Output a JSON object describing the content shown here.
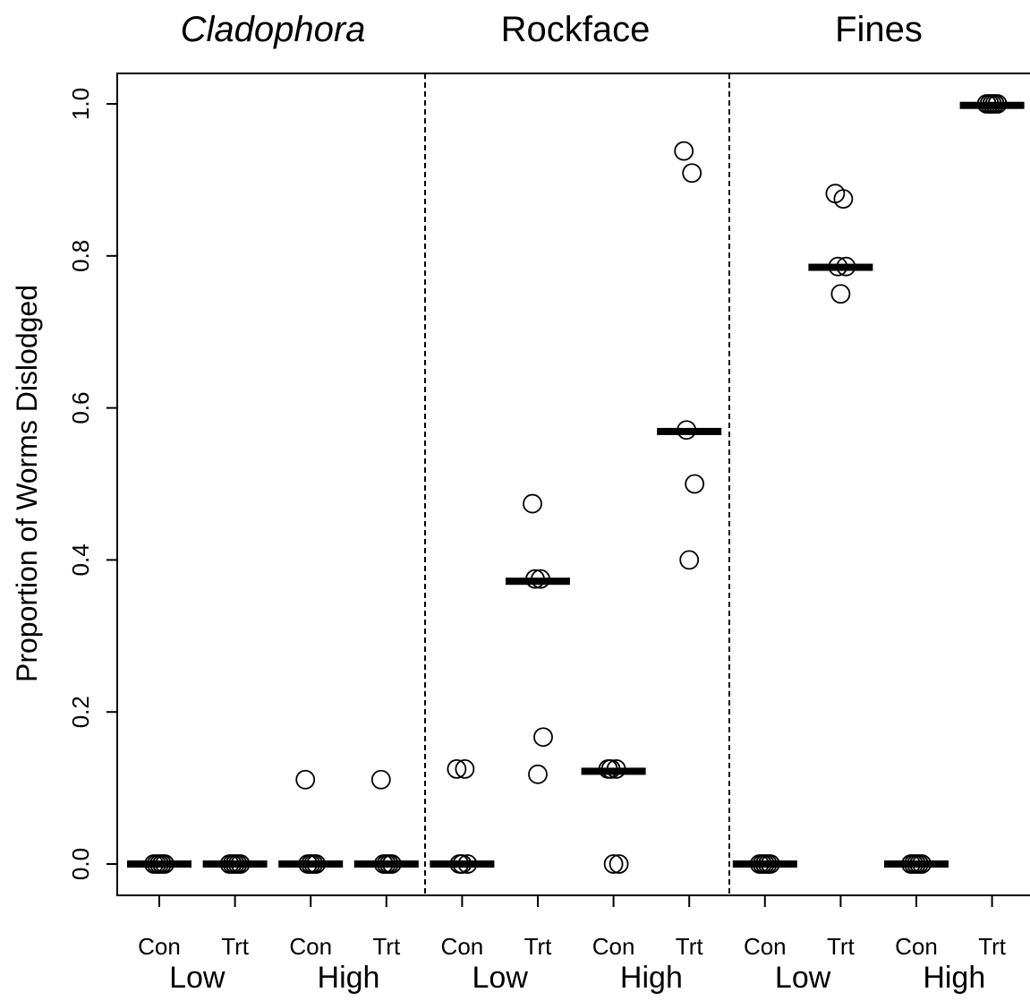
{
  "chart_data": {
    "type": "scatter",
    "ylabel": "Proportion of Worms Dislodged",
    "ylim": [
      0.0,
      1.0
    ],
    "yticks": [
      "0.0",
      "0.2",
      "0.4",
      "0.6",
      "0.8",
      "1.0"
    ],
    "panels": [
      {
        "title": "Cladophora",
        "italic": true
      },
      {
        "title": "Rockface",
        "italic": false
      },
      {
        "title": "Fines",
        "italic": false
      }
    ],
    "x_categories": [
      "Con",
      "Trt",
      "Con",
      "Trt",
      "Con",
      "Trt",
      "Con",
      "Trt",
      "Con",
      "Trt",
      "Con",
      "Trt"
    ],
    "x_groups": [
      "Low",
      "High",
      "Low",
      "High",
      "Low",
      "High"
    ],
    "median_shown": "horizontal bar per category",
    "points": [
      {
        "category": 1,
        "values": [
          0,
          0,
          0,
          0,
          0
        ]
      },
      {
        "category": 2,
        "values": [
          0,
          0,
          0,
          0,
          0
        ]
      },
      {
        "category": 3,
        "values": [
          0.111,
          0,
          0,
          0,
          0
        ]
      },
      {
        "category": 4,
        "values": [
          0.111,
          0,
          0,
          0,
          0
        ]
      },
      {
        "category": 5,
        "values": [
          0.125,
          0.125,
          0,
          0,
          0
        ]
      },
      {
        "category": 6,
        "values": [
          0.474,
          0.375,
          0.375,
          0.167,
          0.118
        ]
      },
      {
        "category": 7,
        "values": [
          0.125,
          0.125,
          0.125,
          0,
          0
        ]
      },
      {
        "category": 8,
        "values": [
          0.938,
          0.909,
          0.571,
          0.5,
          0.4
        ]
      },
      {
        "category": 9,
        "values": [
          0,
          0,
          0,
          0,
          0
        ]
      },
      {
        "category": 10,
        "values": [
          0.882,
          0.875,
          0.786,
          0.786,
          0.75
        ]
      },
      {
        "category": 11,
        "values": [
          0,
          0,
          0,
          0,
          0
        ]
      },
      {
        "category": 12,
        "values": [
          1.0,
          1.0,
          1.0,
          1.0,
          1.0
        ]
      }
    ],
    "medians": [
      0,
      0,
      0,
      0,
      0,
      0.372,
      0.122,
      0.569,
      0,
      0.785,
      0,
      0.998
    ]
  }
}
